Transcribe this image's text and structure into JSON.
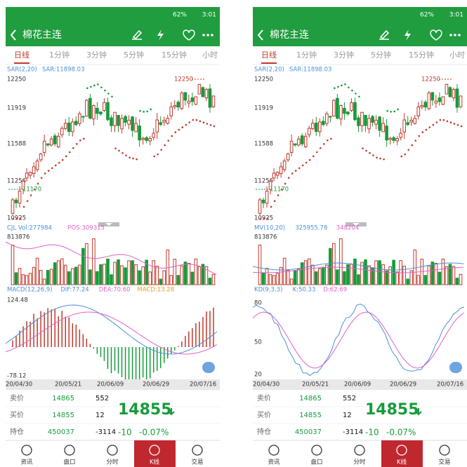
{
  "status": {
    "time": "3:01",
    "battery": "62%"
  },
  "header": {
    "title": "棉花主连"
  },
  "tabs": [
    "日线",
    "1分钟",
    "3分钟",
    "5分钟",
    "15分钟",
    "小时"
  ],
  "price": {
    "indicator": "SAR(2,20)",
    "value": "SAR:11898.03",
    "labels": [
      "12250",
      "11919",
      "11588",
      "11256",
      "10925"
    ],
    "high": "12250",
    "low": "11170"
  },
  "screens": [
    {
      "volume": {
        "items": [
          {
            "text": "CJL Vol:277984",
            "color": "#4a8fd8"
          },
          {
            "text": "POS:309315",
            "color": "#e060c8"
          }
        ],
        "max": "813876"
      },
      "sub": {
        "kind": "macd",
        "items": [
          {
            "text": "MACD(12,26,9)",
            "color": "#4a8fd8"
          },
          {
            "text": "DIF:77.24",
            "color": "#4a8fd8"
          },
          {
            "text": "DEA:70.60",
            "color": "#e060c8"
          },
          {
            "text": "MACD:13.28",
            "color": "#e0a020"
          }
        ],
        "labels": [
          "124.48",
          "-78.12"
        ]
      }
    },
    {
      "volume": {
        "items": [
          {
            "text": "MV(10,20)",
            "color": "#4a8fd8"
          },
          {
            "text": "325955.78",
            "color": "#4a8fd8"
          },
          {
            "text": "348204",
            "color": "#e060c8"
          }
        ],
        "max": "813876"
      },
      "sub": {
        "kind": "kd",
        "items": [
          {
            "text": "KD(9,3,3)",
            "color": "#4a8fd8"
          },
          {
            "text": "K:50.33",
            "color": "#4a8fd8"
          },
          {
            "text": "D:62.69",
            "color": "#e060c8"
          }
        ],
        "labels": [
          "80",
          "50",
          "20"
        ]
      }
    }
  ],
  "dates": [
    "20/04/30",
    "20/05/21",
    "20/06/09",
    "20/06/29",
    "20/07/16"
  ],
  "quote": {
    "rows": [
      {
        "label": "卖价",
        "price": "14865",
        "volume": "552"
      },
      {
        "label": "买价",
        "price": "14855",
        "volume": "12"
      },
      {
        "label": "持仓",
        "price": "450037",
        "volume": "-3114"
      }
    ],
    "last": "14855",
    "change": "-10",
    "percent": "-0.07%"
  },
  "nav": [
    "资讯",
    "盘口",
    "分时",
    "K线",
    "交易"
  ]
}
